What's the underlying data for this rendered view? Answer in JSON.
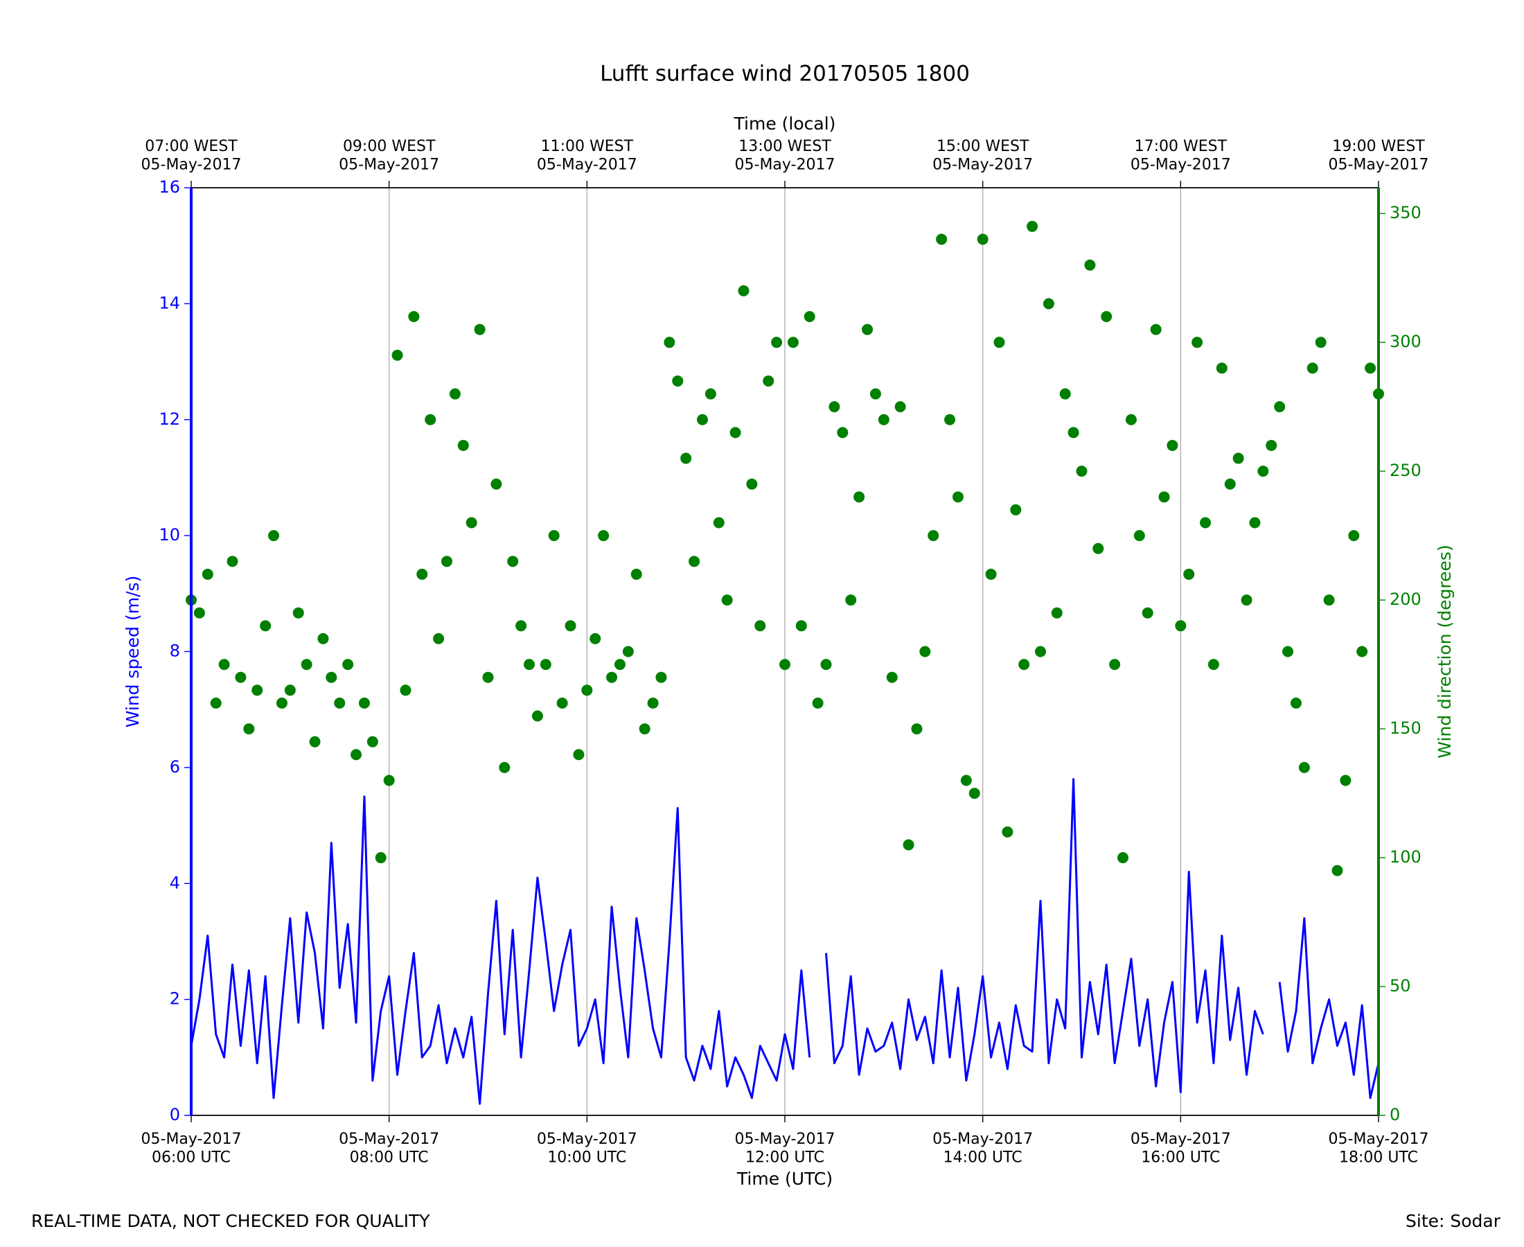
{
  "chart_data": {
    "type": "line",
    "title": "Lufft surface wind 20170505 1800",
    "xlabel": "Time (UTC)",
    "x2label": "Time (local)",
    "ylabel": "Wind speed (m/s)",
    "y2label": "Wind direction (degrees)",
    "grid": true,
    "xlim": [
      "2017-05-05 06:00",
      "2017-05-05 18:00"
    ],
    "xticks": [
      {
        "value": "2017-05-05 06:00",
        "label": "05-May-2017\n06:00 UTC"
      },
      {
        "value": "2017-05-05 08:00",
        "label": "05-May-2017\n08:00 UTC"
      },
      {
        "value": "2017-05-05 10:00",
        "label": "05-May-2017\n10:00 UTC"
      },
      {
        "value": "2017-05-05 12:00",
        "label": "05-May-2017\n12:00 UTC"
      },
      {
        "value": "2017-05-05 14:00",
        "label": "05-May-2017\n14:00 UTC"
      },
      {
        "value": "2017-05-05 16:00",
        "label": "05-May-2017\n16:00 UTC"
      },
      {
        "value": "2017-05-05 18:00",
        "label": "05-May-2017\n18:00 UTC"
      }
    ],
    "x2ticks": [
      {
        "value": "2017-05-05 06:00",
        "label": "07:00 WEST\n05-May-2017"
      },
      {
        "value": "2017-05-05 08:00",
        "label": "09:00 WEST\n05-May-2017"
      },
      {
        "value": "2017-05-05 10:00",
        "label": "11:00 WEST\n05-May-2017"
      },
      {
        "value": "2017-05-05 12:00",
        "label": "13:00 WEST\n05-May-2017"
      },
      {
        "value": "2017-05-05 14:00",
        "label": "15:00 WEST\n05-May-2017"
      },
      {
        "value": "2017-05-05 16:00",
        "label": "17:00 WEST\n05-May-2017"
      },
      {
        "value": "2017-05-05 18:00",
        "label": "19:00 WEST\n05-May-2017"
      }
    ],
    "ylim": [
      0,
      16
    ],
    "yticks": [
      0,
      2,
      4,
      6,
      8,
      10,
      12,
      14,
      16
    ],
    "ycolor": "#0000ff",
    "y2lim": [
      0,
      360
    ],
    "y2ticks": [
      0,
      50,
      100,
      150,
      200,
      250,
      300,
      350
    ],
    "y2color": "#008000",
    "x": [
      "2017-05-05 06:00",
      "2017-05-05 06:05",
      "2017-05-05 06:10",
      "2017-05-05 06:15",
      "2017-05-05 06:20",
      "2017-05-05 06:25",
      "2017-05-05 06:30",
      "2017-05-05 06:35",
      "2017-05-05 06:40",
      "2017-05-05 06:45",
      "2017-05-05 06:50",
      "2017-05-05 06:55",
      "2017-05-05 07:00",
      "2017-05-05 07:05",
      "2017-05-05 07:10",
      "2017-05-05 07:15",
      "2017-05-05 07:20",
      "2017-05-05 07:25",
      "2017-05-05 07:30",
      "2017-05-05 07:35",
      "2017-05-05 07:40",
      "2017-05-05 07:45",
      "2017-05-05 07:50",
      "2017-05-05 07:55",
      "2017-05-05 08:00",
      "2017-05-05 08:05",
      "2017-05-05 08:10",
      "2017-05-05 08:15",
      "2017-05-05 08:20",
      "2017-05-05 08:25",
      "2017-05-05 08:30",
      "2017-05-05 08:35",
      "2017-05-05 08:40",
      "2017-05-05 08:45",
      "2017-05-05 08:50",
      "2017-05-05 08:55",
      "2017-05-05 09:00",
      "2017-05-05 09:05",
      "2017-05-05 09:10",
      "2017-05-05 09:15",
      "2017-05-05 09:20",
      "2017-05-05 09:25",
      "2017-05-05 09:30",
      "2017-05-05 09:35",
      "2017-05-05 09:40",
      "2017-05-05 09:45",
      "2017-05-05 09:50",
      "2017-05-05 09:55",
      "2017-05-05 10:00",
      "2017-05-05 10:05",
      "2017-05-05 10:10",
      "2017-05-05 10:15",
      "2017-05-05 10:20",
      "2017-05-05 10:25",
      "2017-05-05 10:30",
      "2017-05-05 10:35",
      "2017-05-05 10:40",
      "2017-05-05 10:45",
      "2017-05-05 10:50",
      "2017-05-05 10:55",
      "2017-05-05 11:00",
      "2017-05-05 11:05",
      "2017-05-05 11:10",
      "2017-05-05 11:15",
      "2017-05-05 11:20",
      "2017-05-05 11:25",
      "2017-05-05 11:30",
      "2017-05-05 11:35",
      "2017-05-05 11:40",
      "2017-05-05 11:45",
      "2017-05-05 11:50",
      "2017-05-05 11:55",
      "2017-05-05 12:00",
      "2017-05-05 12:05",
      "2017-05-05 12:10",
      "2017-05-05 12:15",
      "2017-05-05 12:20",
      "2017-05-05 12:25",
      "2017-05-05 12:30",
      "2017-05-05 12:35",
      "2017-05-05 12:40",
      "2017-05-05 12:45",
      "2017-05-05 12:50",
      "2017-05-05 12:55",
      "2017-05-05 13:00",
      "2017-05-05 13:05",
      "2017-05-05 13:10",
      "2017-05-05 13:15",
      "2017-05-05 13:20",
      "2017-05-05 13:25",
      "2017-05-05 13:30",
      "2017-05-05 13:35",
      "2017-05-05 13:40",
      "2017-05-05 13:45",
      "2017-05-05 13:50",
      "2017-05-05 13:55",
      "2017-05-05 14:00",
      "2017-05-05 14:05",
      "2017-05-05 14:10",
      "2017-05-05 14:15",
      "2017-05-05 14:20",
      "2017-05-05 14:25",
      "2017-05-05 14:30",
      "2017-05-05 14:35",
      "2017-05-05 14:40",
      "2017-05-05 14:45",
      "2017-05-05 14:50",
      "2017-05-05 14:55",
      "2017-05-05 15:00",
      "2017-05-05 15:05",
      "2017-05-05 15:10",
      "2017-05-05 15:15",
      "2017-05-05 15:20",
      "2017-05-05 15:25",
      "2017-05-05 15:30",
      "2017-05-05 15:35",
      "2017-05-05 15:40",
      "2017-05-05 15:45",
      "2017-05-05 15:50",
      "2017-05-05 15:55",
      "2017-05-05 16:00",
      "2017-05-05 16:05",
      "2017-05-05 16:10",
      "2017-05-05 16:15",
      "2017-05-05 16:20",
      "2017-05-05 16:25",
      "2017-05-05 16:30",
      "2017-05-05 16:35",
      "2017-05-05 16:40",
      "2017-05-05 16:45",
      "2017-05-05 16:50",
      "2017-05-05 16:55",
      "2017-05-05 17:00",
      "2017-05-05 17:05",
      "2017-05-05 17:10",
      "2017-05-05 17:15",
      "2017-05-05 17:20",
      "2017-05-05 17:25",
      "2017-05-05 17:30",
      "2017-05-05 17:35",
      "2017-05-05 17:40",
      "2017-05-05 17:45",
      "2017-05-05 17:50",
      "2017-05-05 17:55",
      "2017-05-05 18:00"
    ],
    "series": [
      {
        "type": "line",
        "axis": "y",
        "color": "#0000ff",
        "values": [
          1.2,
          2.0,
          3.1,
          1.4,
          1.0,
          2.6,
          1.2,
          2.5,
          0.9,
          2.4,
          0.3,
          1.9,
          3.4,
          1.6,
          3.5,
          2.8,
          1.5,
          4.7,
          2.2,
          3.3,
          1.6,
          5.5,
          0.6,
          1.8,
          2.4,
          0.7,
          1.8,
          2.8,
          1.0,
          1.2,
          1.9,
          0.9,
          1.5,
          1.0,
          1.7,
          0.2,
          2.1,
          3.7,
          1.4,
          3.2,
          1.0,
          2.5,
          4.1,
          3.0,
          1.8,
          2.6,
          3.2,
          1.2,
          1.5,
          2.0,
          0.9,
          3.6,
          2.2,
          1.0,
          3.4,
          2.5,
          1.5,
          1.0,
          3.0,
          5.3,
          1.0,
          0.6,
          1.2,
          0.8,
          1.8,
          0.5,
          1.0,
          0.7,
          0.3,
          1.2,
          0.9,
          0.6,
          1.4,
          0.8,
          2.5,
          1.0,
          null,
          2.8,
          0.9,
          1.2,
          2.4,
          0.7,
          1.5,
          1.1,
          1.2,
          1.6,
          0.8,
          2.0,
          1.3,
          1.7,
          0.9,
          2.5,
          1.0,
          2.2,
          0.6,
          1.4,
          2.4,
          1.0,
          1.6,
          0.8,
          1.9,
          1.2,
          1.1,
          3.7,
          0.9,
          2.0,
          1.5,
          5.8,
          1.0,
          2.3,
          1.4,
          2.6,
          0.9,
          1.8,
          2.7,
          1.2,
          2.0,
          0.5,
          1.6,
          2.3,
          0.4,
          4.2,
          1.6,
          2.5,
          0.9,
          3.1,
          1.3,
          2.2,
          0.7,
          1.8,
          1.4,
          null,
          2.3,
          1.1,
          1.8,
          3.4,
          0.9,
          1.5,
          2.0,
          1.2,
          1.6,
          0.7,
          1.9,
          0.3,
          0.9
        ]
      },
      {
        "type": "scatter",
        "axis": "y2",
        "color": "#008000",
        "values": [
          200,
          195,
          210,
          160,
          175,
          215,
          170,
          150,
          165,
          190,
          225,
          160,
          165,
          195,
          175,
          145,
          185,
          170,
          160,
          175,
          140,
          160,
          145,
          100,
          130,
          295,
          165,
          310,
          210,
          270,
          185,
          215,
          280,
          260,
          230,
          305,
          170,
          245,
          135,
          215,
          190,
          175,
          155,
          175,
          225,
          160,
          190,
          140,
          165,
          185,
          225,
          170,
          175,
          180,
          210,
          150,
          160,
          170,
          300,
          285,
          255,
          215,
          270,
          280,
          230,
          200,
          265,
          320,
          245,
          190,
          285,
          300,
          175,
          300,
          190,
          310,
          160,
          175,
          275,
          265,
          200,
          240,
          305,
          280,
          270,
          170,
          275,
          105,
          150,
          180,
          225,
          340,
          270,
          240,
          130,
          125,
          340,
          210,
          300,
          110,
          235,
          175,
          345,
          180,
          315,
          195,
          280,
          265,
          250,
          330,
          220,
          310,
          175,
          100,
          270,
          225,
          195,
          305,
          240,
          260,
          190,
          210,
          300,
          230,
          175,
          290,
          245,
          255,
          200,
          230,
          250,
          260,
          275,
          180,
          160,
          135,
          290,
          300,
          200,
          95,
          130,
          225,
          180,
          290,
          280
        ]
      }
    ]
  },
  "footer": {
    "left": "REAL-TIME DATA, NOT CHECKED FOR QUALITY",
    "right": "Site: Sodar"
  }
}
